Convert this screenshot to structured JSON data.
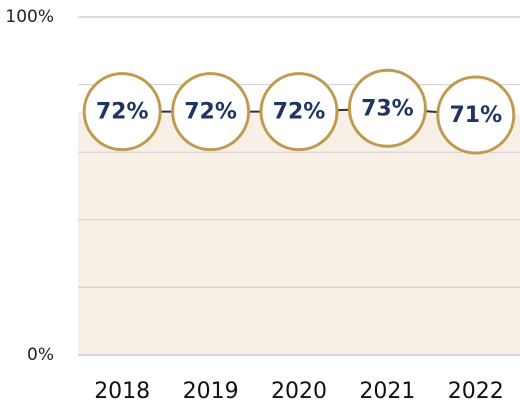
{
  "chart_data": {
    "type": "line",
    "categories": [
      "2018",
      "2019",
      "2020",
      "2021",
      "2022"
    ],
    "values": [
      72,
      72,
      72,
      73,
      71
    ],
    "value_labels": [
      "72%",
      "72%",
      "72%",
      "73%",
      "71%"
    ],
    "color": "#c09a4f",
    "label_color": "#1f3560",
    "area_color": "#f8efe6",
    "line_color": "#333333",
    "ylim": [
      0,
      100
    ],
    "yticks": [
      {
        "value": 0,
        "label": "0%"
      },
      {
        "value": 100,
        "label": "100%"
      }
    ],
    "minor_yticks": [
      20,
      40,
      60,
      80
    ],
    "grid": true
  }
}
